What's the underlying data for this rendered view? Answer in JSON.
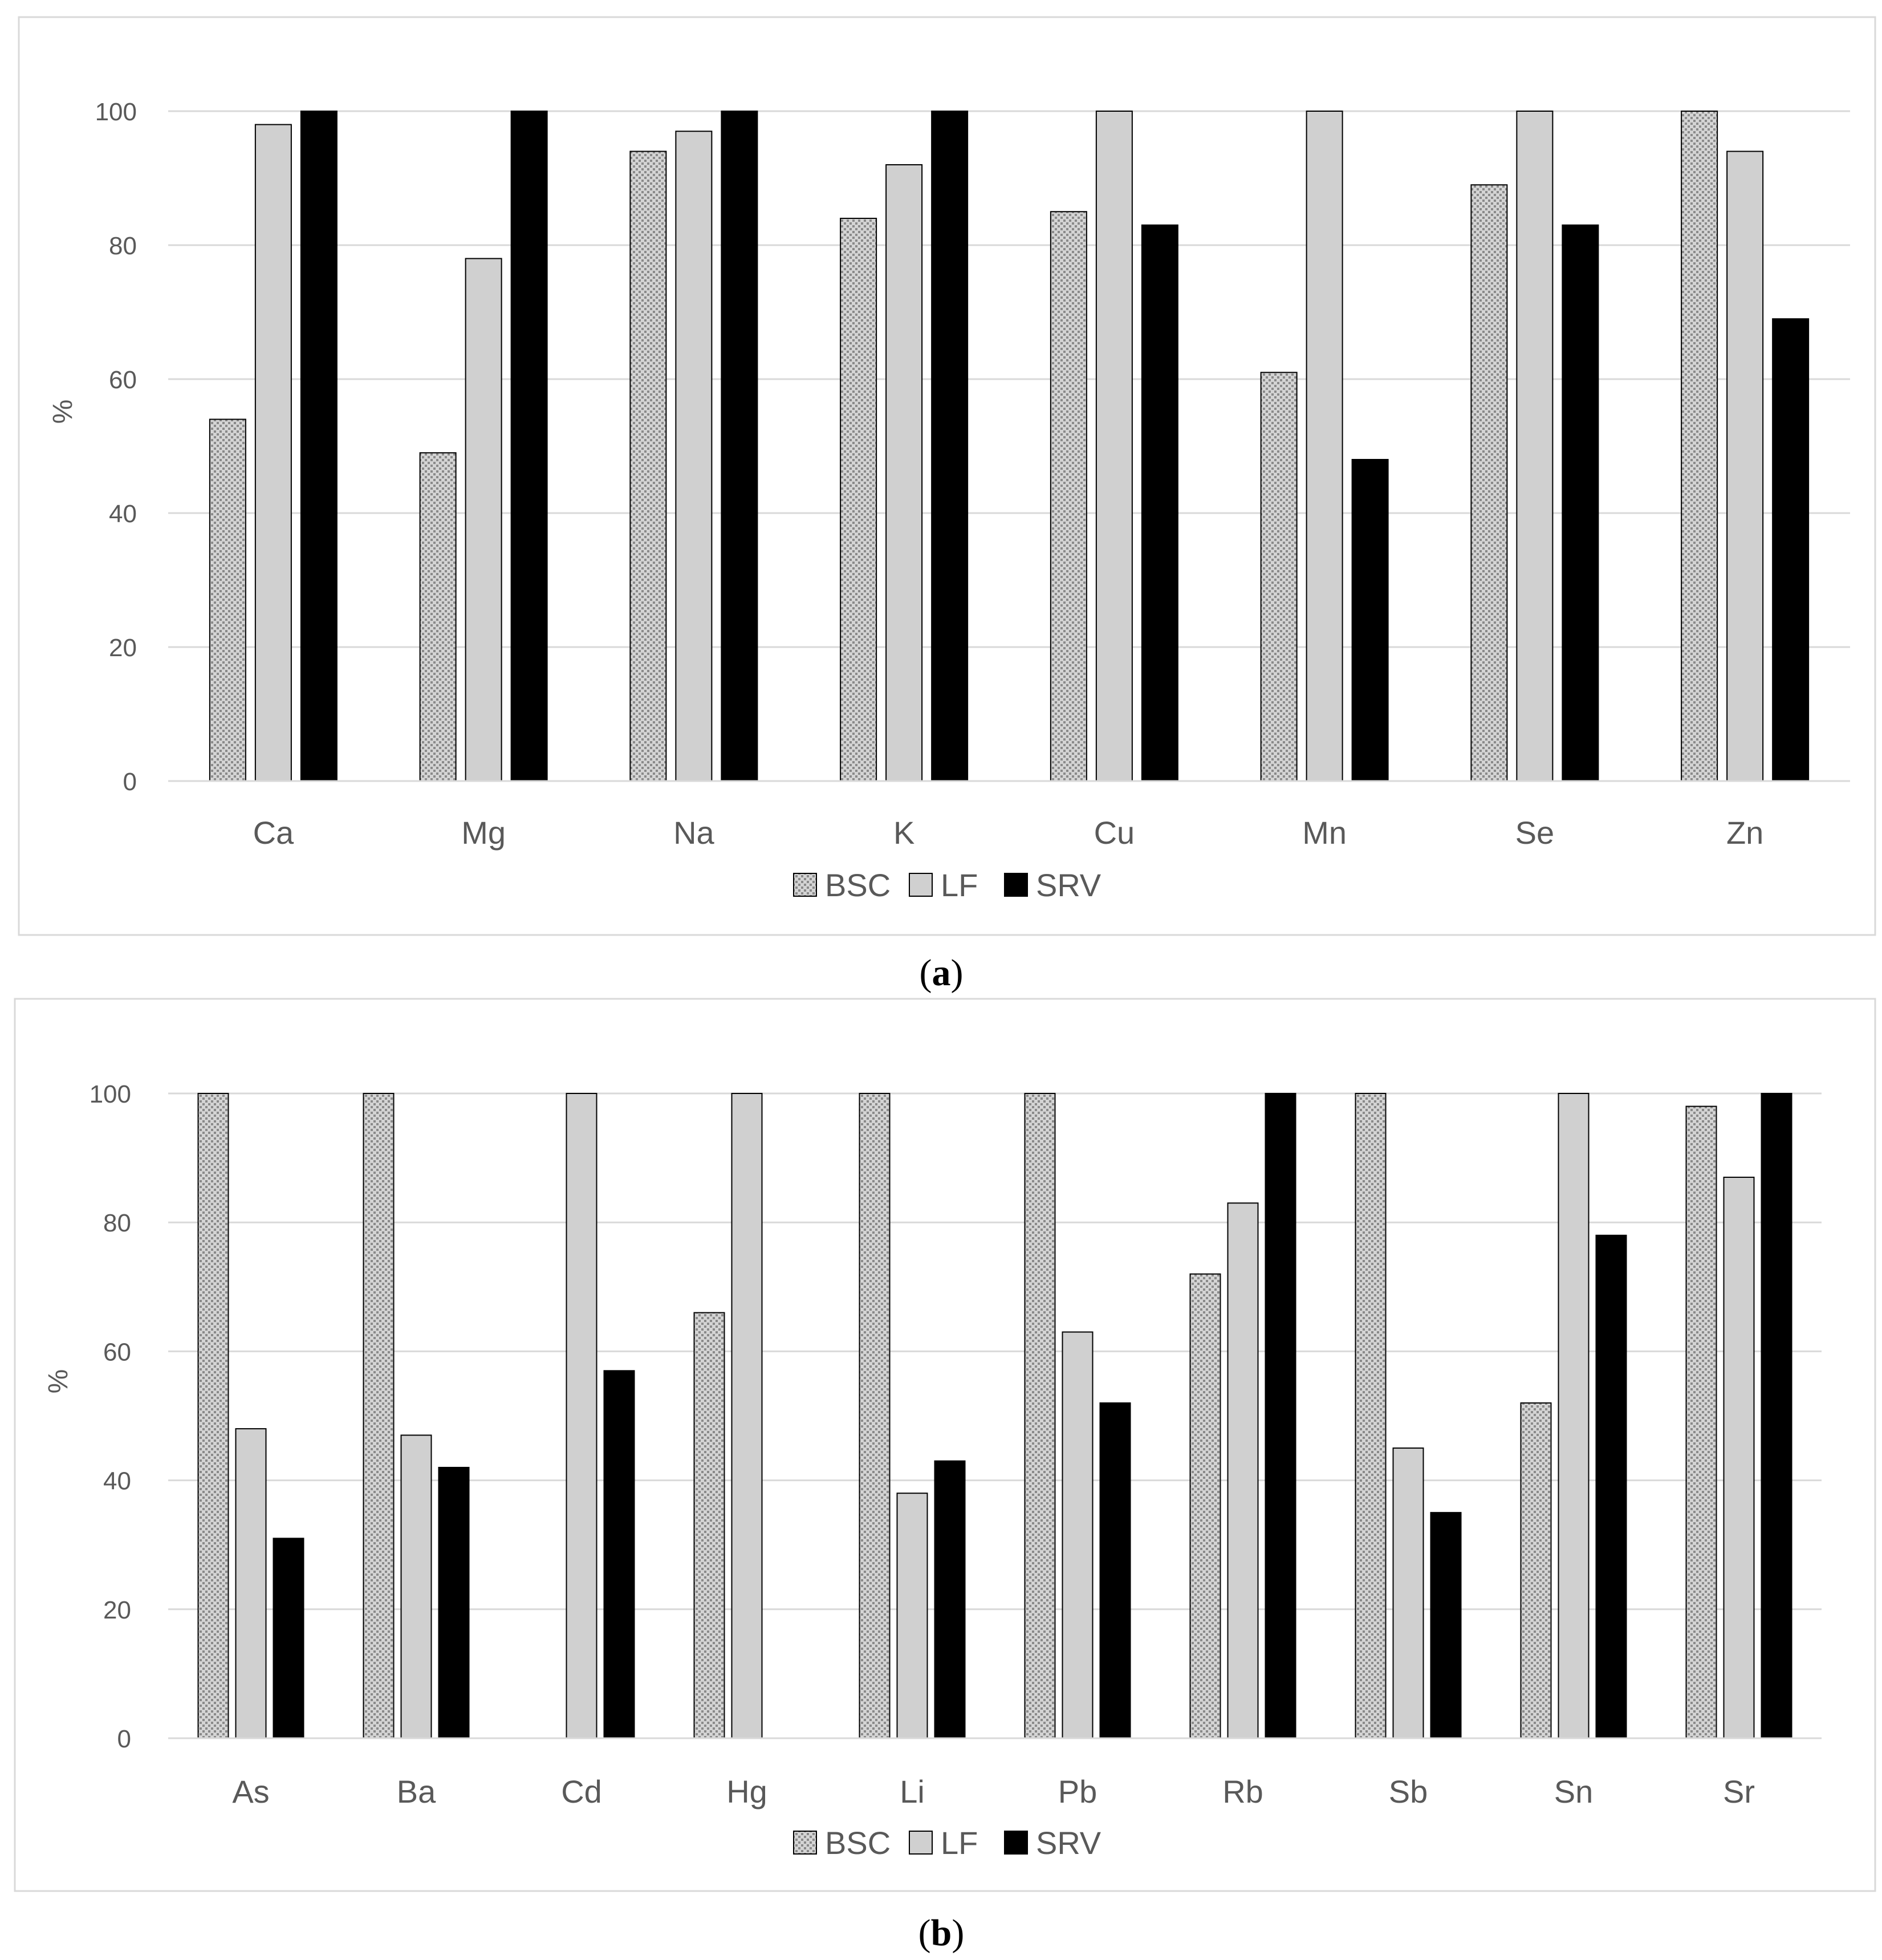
{
  "colors": {
    "BSC_fill": "#d4d4d4",
    "BSC_dot": "#8a8a8a",
    "LF": "#d0d0d0",
    "SRV": "#000000",
    "grid": "#d9d9d9",
    "frame": "#d9d9d9",
    "text": "#595959"
  },
  "chart_data": [
    {
      "type": "bar",
      "panel_label": "a",
      "ylabel": "%",
      "ylim": [
        0,
        100
      ],
      "yticks": [
        0,
        20,
        40,
        60,
        80,
        100
      ],
      "grid": true,
      "legend": "bottom-center",
      "categories": [
        "Ca",
        "Mg",
        "Na",
        "K",
        "Cu",
        "Mn",
        "Se",
        "Zn"
      ],
      "series": [
        {
          "name": "BSC",
          "pattern": "dotted",
          "values": [
            54,
            49,
            94,
            84,
            85,
            61,
            89,
            100
          ]
        },
        {
          "name": "LF",
          "pattern": "light-gray",
          "values": [
            98,
            78,
            97,
            92,
            100,
            100,
            100,
            94
          ]
        },
        {
          "name": "SRV",
          "pattern": "black",
          "values": [
            100,
            100,
            100,
            100,
            83,
            48,
            83,
            69
          ]
        }
      ]
    },
    {
      "type": "bar",
      "panel_label": "b",
      "ylabel": "%",
      "ylim": [
        0,
        100
      ],
      "yticks": [
        0,
        20,
        40,
        60,
        80,
        100
      ],
      "grid": true,
      "legend": "bottom-center",
      "categories": [
        "As",
        "Ba",
        "Cd",
        "Hg",
        "Li",
        "Pb",
        "Rb",
        "Sb",
        "Sn",
        "Sr"
      ],
      "series": [
        {
          "name": "BSC",
          "pattern": "dotted",
          "values": [
            100,
            100,
            0,
            66,
            100,
            100,
            72,
            100,
            52,
            98
          ]
        },
        {
          "name": "LF",
          "pattern": "light-gray",
          "values": [
            48,
            47,
            100,
            100,
            38,
            63,
            83,
            45,
            100,
            87
          ]
        },
        {
          "name": "SRV",
          "pattern": "black",
          "values": [
            31,
            42,
            57,
            0,
            43,
            52,
            100,
            35,
            78,
            100
          ]
        }
      ]
    }
  ]
}
